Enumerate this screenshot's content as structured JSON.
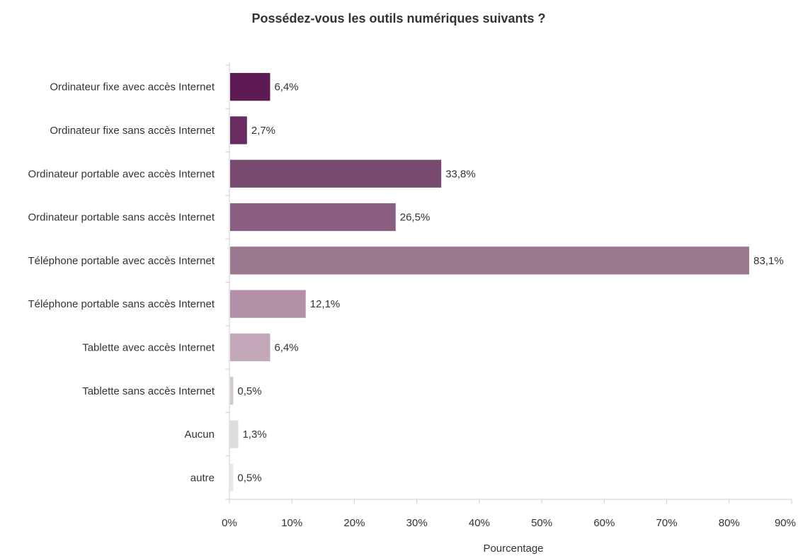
{
  "chart_data": {
    "type": "bar",
    "orientation": "horizontal",
    "title": "Possédez-vous les outils numériques suivants ?",
    "xlabel": "Pourcentage",
    "ylabel": "",
    "xlim": [
      0,
      90
    ],
    "grid": false,
    "xticks": [
      "0%",
      "10%",
      "20%",
      "30%",
      "40%",
      "50%",
      "60%",
      "70%",
      "80%",
      "90%"
    ],
    "categories": [
      "Ordinateur fixe avec accès Internet",
      "Ordinateur fixe sans accès Internet",
      "Ordinateur portable avec accès Internet",
      "Ordinateur portable sans accès Internet",
      "Téléphone portable avec accès Internet",
      "Téléphone portable sans accès Internet",
      "Tablette avec accès Internet",
      "Tablette sans accès Internet",
      "Aucun",
      "autre"
    ],
    "values": [
      6.4,
      2.7,
      33.8,
      26.5,
      83.1,
      12.1,
      6.4,
      0.5,
      1.3,
      0.5
    ],
    "value_labels": [
      "6,4%",
      "2,7%",
      "33,8%",
      "26,5%",
      "83,1%",
      "12,1%",
      "6,4%",
      "0,5%",
      "1,3%",
      "0,5%"
    ],
    "colors": [
      "#5e1a55",
      "#692b60",
      "#784a70",
      "#8a5e81",
      "#9b7790",
      "#b48fa8",
      "#c3a8ba",
      "#d1c7cd",
      "#dcdcdc",
      "#e8e8e8"
    ]
  }
}
